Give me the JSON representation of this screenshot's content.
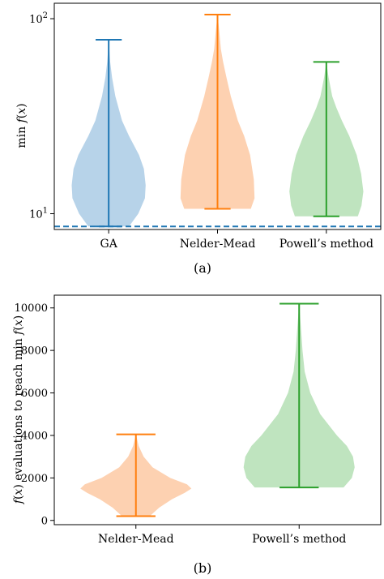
{
  "chart_data": [
    {
      "type": "violin",
      "caption": "(a)",
      "ylabel": "min f(x)",
      "yscale": "log",
      "ylim": [
        8.3,
        120
      ],
      "yticks": [
        {
          "value": 10,
          "base": "10",
          "exp": "1"
        },
        {
          "value": 100,
          "base": "10",
          "exp": "2"
        }
      ],
      "categories": [
        "GA",
        "Nelder-Mead",
        "Powell’s method"
      ],
      "reference_line": {
        "value": 8.6,
        "style": "dashed",
        "color": "#1f77b4"
      },
      "series": [
        {
          "color": "#1f77b4",
          "fill": "#b7d3e9",
          "min": 8.6,
          "max": 78,
          "density": [
            [
              8.6,
              0.55
            ],
            [
              10,
              0.8
            ],
            [
              12,
              0.98
            ],
            [
              14,
              1.0
            ],
            [
              17,
              0.95
            ],
            [
              20,
              0.82
            ],
            [
              25,
              0.55
            ],
            [
              30,
              0.36
            ],
            [
              40,
              0.18
            ],
            [
              50,
              0.09
            ],
            [
              60,
              0.04
            ],
            [
              70,
              0.015
            ],
            [
              78,
              0.0
            ]
          ]
        },
        {
          "color": "#ff7f0e",
          "fill": "#fdd1b1",
          "min": 10.6,
          "max": 105,
          "density": [
            [
              10.6,
              0.9
            ],
            [
              12,
              1.0
            ],
            [
              15,
              0.98
            ],
            [
              20,
              0.88
            ],
            [
              25,
              0.72
            ],
            [
              30,
              0.55
            ],
            [
              40,
              0.36
            ],
            [
              50,
              0.24
            ],
            [
              60,
              0.15
            ],
            [
              70,
              0.09
            ],
            [
              85,
              0.05
            ],
            [
              105,
              0.0
            ]
          ]
        },
        {
          "color": "#2ca02c",
          "fill": "#bfe4bf",
          "min": 9.7,
          "max": 60,
          "density": [
            [
              9.7,
              0.85
            ],
            [
              11,
              0.95
            ],
            [
              13,
              1.0
            ],
            [
              16,
              0.94
            ],
            [
              20,
              0.82
            ],
            [
              25,
              0.62
            ],
            [
              30,
              0.42
            ],
            [
              35,
              0.27
            ],
            [
              40,
              0.16
            ],
            [
              50,
              0.06
            ],
            [
              60,
              0.0
            ]
          ]
        }
      ]
    },
    {
      "type": "violin",
      "caption": "(b)",
      "ylabel": "f(x) evaluations to reach min f(x)",
      "yscale": "linear",
      "ylim": [
        -200,
        10600
      ],
      "yticks": [
        0,
        2000,
        4000,
        6000,
        8000,
        10000
      ],
      "categories": [
        "Nelder-Mead",
        "Powell’s method"
      ],
      "series": [
        {
          "color": "#ff7f0e",
          "fill": "#fdd1b1",
          "min": 200,
          "max": 4050,
          "density": [
            [
              200,
              0.25
            ],
            [
              600,
              0.42
            ],
            [
              1000,
              0.65
            ],
            [
              1300,
              0.88
            ],
            [
              1500,
              1.0
            ],
            [
              1700,
              0.92
            ],
            [
              2000,
              0.62
            ],
            [
              2500,
              0.3
            ],
            [
              3000,
              0.14
            ],
            [
              3500,
              0.05
            ],
            [
              4050,
              0.0
            ]
          ]
        },
        {
          "color": "#2ca02c",
          "fill": "#bfe4bf",
          "min": 1550,
          "max": 10200,
          "density": [
            [
              1550,
              0.8
            ],
            [
              2000,
              0.95
            ],
            [
              2500,
              1.0
            ],
            [
              3000,
              0.97
            ],
            [
              3500,
              0.86
            ],
            [
              4000,
              0.68
            ],
            [
              5000,
              0.38
            ],
            [
              6000,
              0.2
            ],
            [
              7000,
              0.1
            ],
            [
              8000,
              0.06
            ],
            [
              9000,
              0.035
            ],
            [
              10200,
              0.0
            ]
          ]
        }
      ]
    }
  ]
}
